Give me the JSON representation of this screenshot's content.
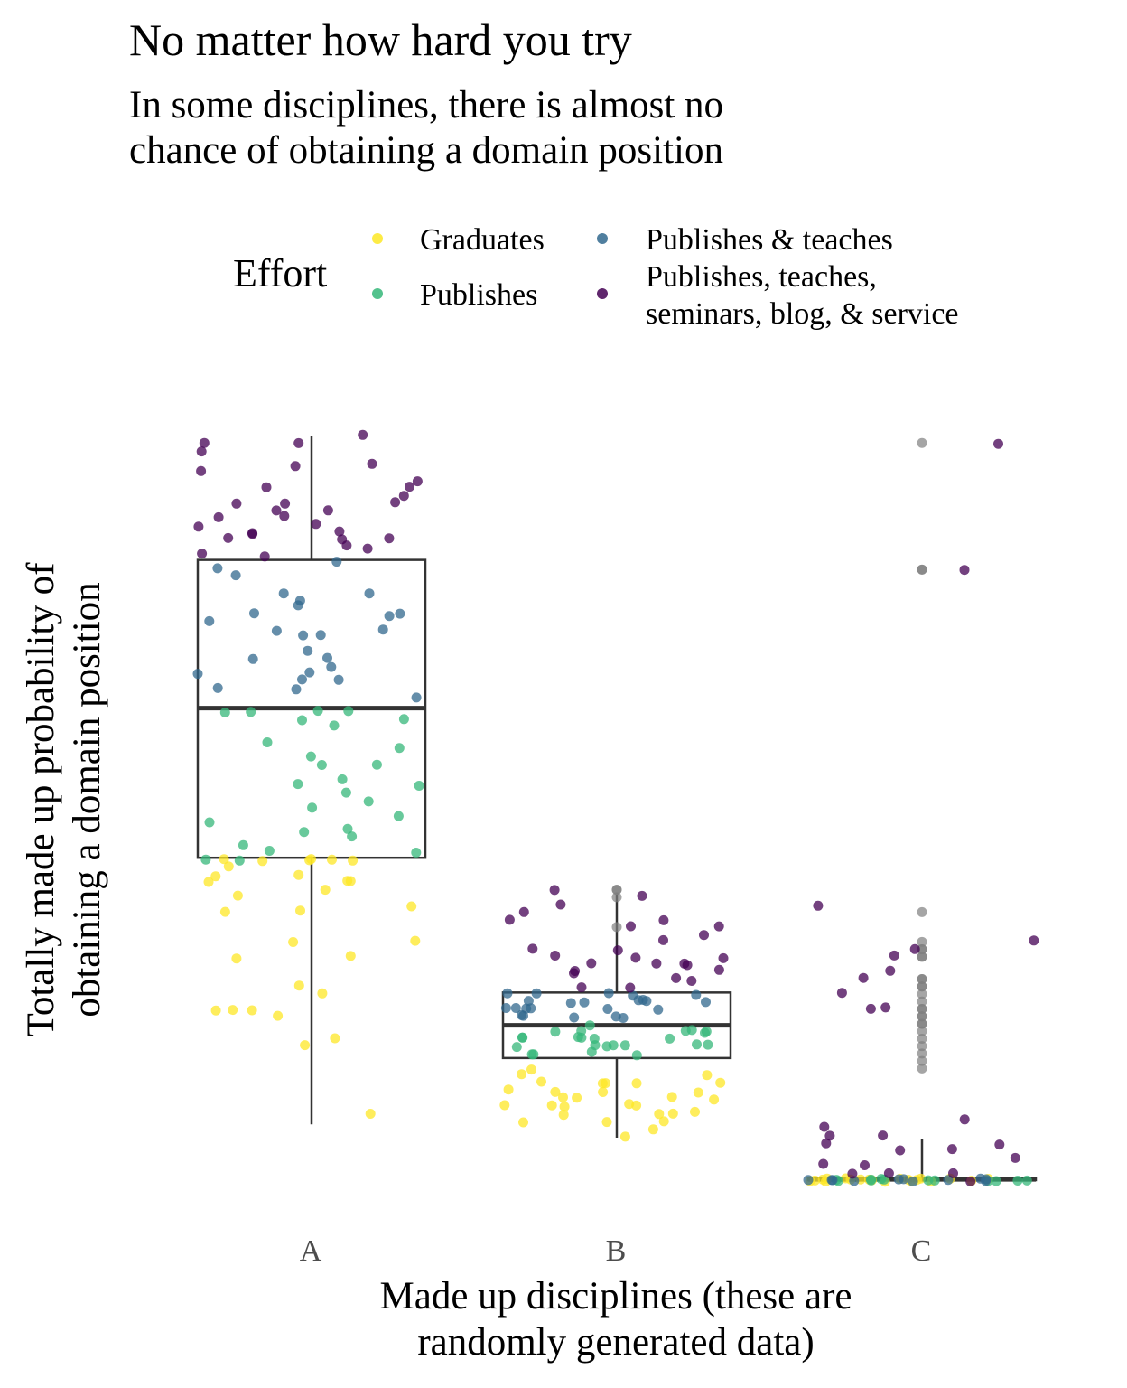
{
  "title": "No matter how hard you try",
  "subtitle_lines": [
    "In some disciplines, there is almost no",
    "chance of obtaining a domain position"
  ],
  "legend": {
    "title": "Effort",
    "items": [
      {
        "label": "Graduates",
        "color": "#FDE725"
      },
      {
        "label": "Publishes",
        "color": "#35B779"
      },
      {
        "label": "Publishes & teaches",
        "color": "#31688E"
      },
      {
        "label_lines": [
          "Publishes, teaches,",
          "seminars, blog, & service"
        ],
        "color": "#440154"
      }
    ]
  },
  "chart_data": {
    "type": "scatter",
    "subtype": "boxplot with jittered points",
    "title": "No matter how hard you try",
    "subtitle": "In some disciplines, there is almost no chance of obtaining a domain position",
    "xlabel_lines": [
      "Made up disciplines (these are",
      "randomly generated data)"
    ],
    "ylabel_lines": [
      "Totally made up probability of",
      "obtaining a domain position"
    ],
    "categories": [
      "A",
      "B",
      "C"
    ],
    "ylim": [
      -0.02,
      1.0
    ],
    "grid": false,
    "legend_position": "top",
    "outlier_color": "#7f7f7f",
    "boxes": [
      {
        "category": "A",
        "whisker_low": 0.075,
        "q1": 0.433,
        "median": 0.634,
        "q3": 0.833,
        "whisker_high": 1.0
      },
      {
        "category": "B",
        "whisker_low": 0.057,
        "q1": 0.164,
        "median": 0.208,
        "q3": 0.252,
        "whisker_high": 0.386
      },
      {
        "category": "C",
        "whisker_low": 0.0,
        "q1": 0.0,
        "median": 0.001,
        "q3": 0.003,
        "whisker_high": 0.055
      }
    ],
    "series": [
      {
        "name": "Graduates",
        "color": "#FDE725",
        "A": [
          0.43,
          0.43,
          0.41,
          0.41,
          0.43,
          0.43,
          0.4,
          0.43,
          0.4,
          0.39,
          0.38,
          0.37,
          0.36,
          0.32,
          0.32,
          0.3,
          0.3,
          0.26,
          0.25,
          0.23,
          0.22,
          0.23,
          0.23,
          0.18,
          0.19,
          0.09,
          0.42,
          0.36,
          0.4,
          0.43
        ],
        "B": [
          0.13,
          0.13,
          0.12,
          0.13,
          0.11,
          0.11,
          0.1,
          0.12,
          0.11,
          0.09,
          0.1,
          0.11,
          0.1,
          0.09,
          0.09,
          0.1,
          0.1,
          0.08,
          0.08,
          0.13,
          0.15,
          0.14,
          0.12,
          0.08,
          0.07,
          0.12,
          0.13,
          0.14,
          0.06,
          0.09
        ],
        "C": [
          0.0,
          0.0,
          0.0,
          0.0,
          0.0,
          0.0,
          0.0,
          0.0,
          0.0,
          0.0,
          0.0,
          0.0,
          0.0,
          0.0,
          0.0,
          0.0,
          0.0,
          0.0,
          0.0,
          0.0
        ]
      },
      {
        "name": "Publishes",
        "color": "#35B779",
        "A": [
          0.63,
          0.63,
          0.63,
          0.62,
          0.62,
          0.58,
          0.57,
          0.56,
          0.56,
          0.54,
          0.53,
          0.53,
          0.52,
          0.51,
          0.5,
          0.49,
          0.48,
          0.47,
          0.47,
          0.46,
          0.45,
          0.44,
          0.44,
          0.43,
          0.43,
          0.63,
          0.59,
          0.61
        ],
        "B": [
          0.2,
          0.2,
          0.2,
          0.19,
          0.18,
          0.19,
          0.19,
          0.18,
          0.18,
          0.18,
          0.18,
          0.17,
          0.17,
          0.18,
          0.18,
          0.19,
          0.19,
          0.2,
          0.2,
          0.21,
          0.2,
          0.19,
          0.17,
          0.17
        ],
        "C": [
          0.0,
          0.0,
          0.0,
          0.0,
          0.0,
          0.0,
          0.0,
          0.0,
          0.0,
          0.0,
          0.0,
          0.0
        ]
      },
      {
        "name": "Publishes & teaches",
        "color": "#31688E",
        "A": [
          0.83,
          0.82,
          0.79,
          0.79,
          0.78,
          0.77,
          0.76,
          0.76,
          0.75,
          0.74,
          0.74,
          0.73,
          0.73,
          0.71,
          0.7,
          0.7,
          0.69,
          0.68,
          0.68,
          0.67,
          0.67,
          0.66,
          0.66,
          0.65,
          0.81,
          0.76
        ],
        "B": [
          0.25,
          0.25,
          0.25,
          0.24,
          0.24,
          0.24,
          0.24,
          0.23,
          0.23,
          0.23,
          0.23,
          0.22,
          0.22,
          0.22,
          0.22,
          0.25,
          0.24,
          0.23,
          0.22,
          0.23,
          0.24,
          0.24,
          0.25
        ],
        "C": [
          0.0,
          0.0,
          0.0,
          0.0,
          0.0,
          0.0,
          0.0,
          0.0,
          0.0,
          0.0,
          0.0
        ]
      },
      {
        "name": "Publishes, teaches, seminars, blog, & service",
        "color": "#440154",
        "A": [
          1.0,
          0.99,
          0.99,
          0.98,
          0.96,
          0.96,
          0.94,
          0.93,
          0.93,
          0.92,
          0.91,
          0.91,
          0.91,
          0.9,
          0.9,
          0.89,
          0.89,
          0.88,
          0.88,
          0.87,
          0.87,
          0.87,
          0.86,
          0.86,
          0.86,
          0.85,
          0.85,
          0.84,
          0.84,
          0.95
        ],
        "B": [
          0.39,
          0.38,
          0.37,
          0.36,
          0.35,
          0.35,
          0.34,
          0.33,
          0.32,
          0.31,
          0.31,
          0.3,
          0.3,
          0.3,
          0.29,
          0.29,
          0.29,
          0.28,
          0.28,
          0.28,
          0.27,
          0.27,
          0.26,
          0.26,
          0.34,
          0.29
        ],
        "C": [
          0.99,
          0.82,
          0.37,
          0.32,
          0.31,
          0.3,
          0.28,
          0.27,
          0.25,
          0.23,
          0.23,
          0.08,
          0.07,
          0.06,
          0.06,
          0.05,
          0.05,
          0.04,
          0.04,
          0.03,
          0.02,
          0.02,
          0.01,
          0.01,
          0.0,
          0.01
        ]
      },
      {
        "name": "outliers",
        "color": "#7f7f7f",
        "B": [
          0.39,
          0.39,
          0.38,
          0.34
        ],
        "C": [
          0.99,
          0.82,
          0.82,
          0.36,
          0.32,
          0.31,
          0.31,
          0.3,
          0.3,
          0.27,
          0.27,
          0.26,
          0.26,
          0.25,
          0.24,
          0.23,
          0.23,
          0.22,
          0.22,
          0.21,
          0.21,
          0.2,
          0.19,
          0.18,
          0.17,
          0.16,
          0.15
        ]
      }
    ]
  }
}
